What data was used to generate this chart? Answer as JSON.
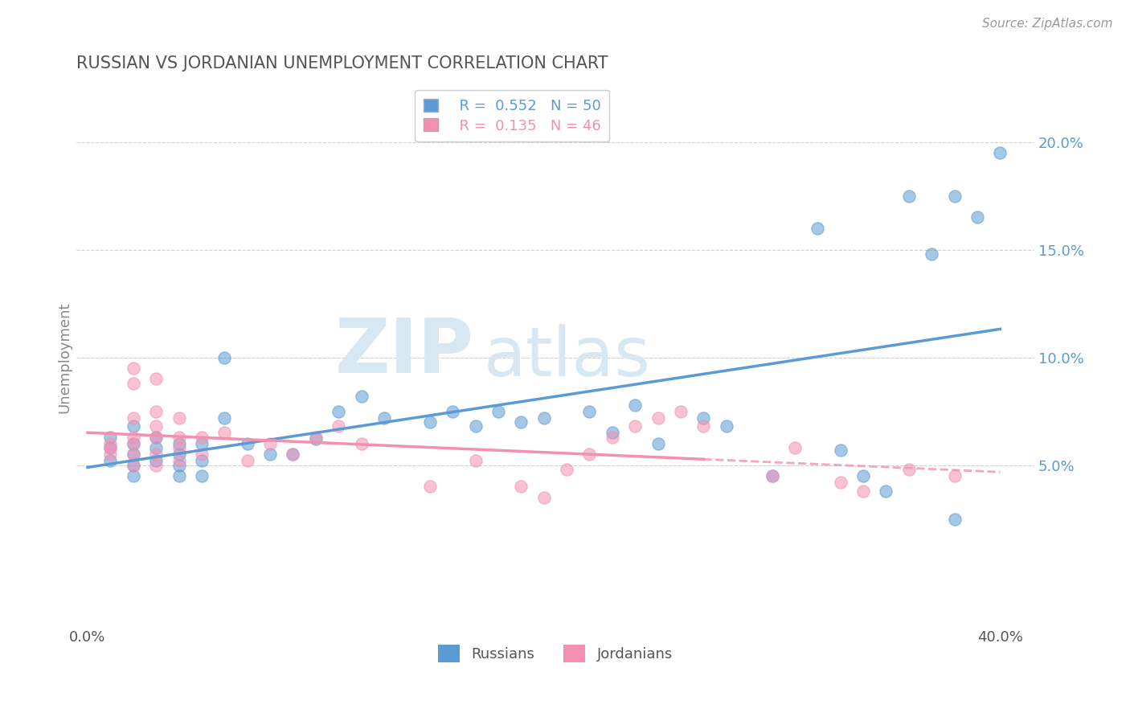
{
  "title": "RUSSIAN VS JORDANIAN UNEMPLOYMENT CORRELATION CHART",
  "source": "Source: ZipAtlas.com",
  "xlabel": "",
  "ylabel": "Unemployment",
  "xlim": [
    -0.005,
    0.415
  ],
  "ylim": [
    -0.025,
    0.225
  ],
  "xticks": [
    0.0,
    0.05,
    0.1,
    0.15,
    0.2,
    0.25,
    0.3,
    0.35,
    0.4
  ],
  "ytick_positions": [
    0.05,
    0.1,
    0.15,
    0.2
  ],
  "ytick_labels": [
    "5.0%",
    "10.0%",
    "15.0%",
    "20.0%"
  ],
  "russian_R": 0.552,
  "russian_N": 50,
  "jordanian_R": 0.135,
  "jordanian_N": 46,
  "russian_color": "#5b9bd5",
  "jordanian_color": "#f48fb1",
  "russian_x": [
    0.01,
    0.01,
    0.01,
    0.02,
    0.02,
    0.02,
    0.02,
    0.02,
    0.03,
    0.03,
    0.03,
    0.04,
    0.04,
    0.04,
    0.04,
    0.05,
    0.05,
    0.05,
    0.06,
    0.06,
    0.07,
    0.08,
    0.09,
    0.1,
    0.11,
    0.12,
    0.13,
    0.15,
    0.16,
    0.17,
    0.18,
    0.19,
    0.2,
    0.22,
    0.23,
    0.24,
    0.25,
    0.27,
    0.28,
    0.3,
    0.32,
    0.33,
    0.34,
    0.35,
    0.36,
    0.37,
    0.38,
    0.38,
    0.39,
    0.4
  ],
  "russian_y": [
    0.063,
    0.058,
    0.052,
    0.06,
    0.055,
    0.068,
    0.05,
    0.045,
    0.058,
    0.063,
    0.052,
    0.06,
    0.05,
    0.055,
    0.045,
    0.06,
    0.052,
    0.045,
    0.1,
    0.072,
    0.06,
    0.055,
    0.055,
    0.062,
    0.075,
    0.082,
    0.072,
    0.07,
    0.075,
    0.068,
    0.075,
    0.07,
    0.072,
    0.075,
    0.065,
    0.078,
    0.06,
    0.072,
    0.068,
    0.045,
    0.16,
    0.057,
    0.045,
    0.038,
    0.175,
    0.148,
    0.175,
    0.025,
    0.165,
    0.195
  ],
  "jordanian_x": [
    0.01,
    0.01,
    0.01,
    0.02,
    0.02,
    0.02,
    0.02,
    0.02,
    0.02,
    0.02,
    0.03,
    0.03,
    0.03,
    0.03,
    0.03,
    0.03,
    0.04,
    0.04,
    0.04,
    0.04,
    0.05,
    0.05,
    0.06,
    0.07,
    0.08,
    0.09,
    0.1,
    0.11,
    0.12,
    0.15,
    0.17,
    0.19,
    0.2,
    0.21,
    0.22,
    0.23,
    0.24,
    0.25,
    0.26,
    0.27,
    0.3,
    0.31,
    0.33,
    0.34,
    0.36,
    0.38
  ],
  "jordanian_y": [
    0.06,
    0.058,
    0.055,
    0.095,
    0.088,
    0.072,
    0.063,
    0.06,
    0.055,
    0.05,
    0.09,
    0.075,
    0.068,
    0.063,
    0.055,
    0.05,
    0.072,
    0.063,
    0.058,
    0.052,
    0.063,
    0.055,
    0.065,
    0.052,
    0.06,
    0.055,
    0.063,
    0.068,
    0.06,
    0.04,
    0.052,
    0.04,
    0.035,
    0.048,
    0.055,
    0.063,
    0.068,
    0.072,
    0.075,
    0.068,
    0.045,
    0.058,
    0.042,
    0.038,
    0.048,
    0.045
  ],
  "watermark_zip": "ZIP",
  "watermark_atlas": "atlas",
  "background_color": "#ffffff",
  "grid_color": "#d0d0d0",
  "title_color": "#555555",
  "axis_label_color": "#888888"
}
